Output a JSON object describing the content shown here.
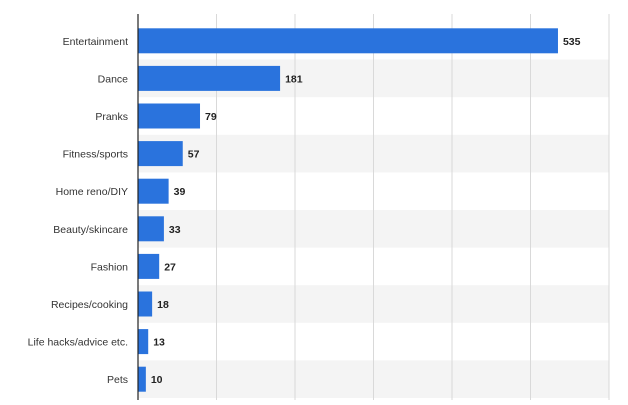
{
  "colors": {
    "bar": "#2a73dd",
    "band": "#f4f4f4",
    "grid": "#d9d9d9",
    "axis": "#222222",
    "label": "#333333",
    "value": "#222222",
    "background": "#ffffff"
  },
  "chart_data": {
    "type": "bar",
    "orientation": "horizontal",
    "categories": [
      "Entertainment",
      "Dance",
      "Pranks",
      "Fitness/sports",
      "Home reno/DIY",
      "Beauty/skincare",
      "Fashion",
      "Recipes/cooking",
      "Life hacks/advice etc.",
      "Pets"
    ],
    "values": [
      535,
      181,
      79,
      57,
      39,
      33,
      27,
      18,
      13,
      10
    ],
    "title": "",
    "xlabel": "",
    "ylabel": "",
    "xlim": [
      0,
      600
    ],
    "grid": true,
    "data_labels": true
  }
}
